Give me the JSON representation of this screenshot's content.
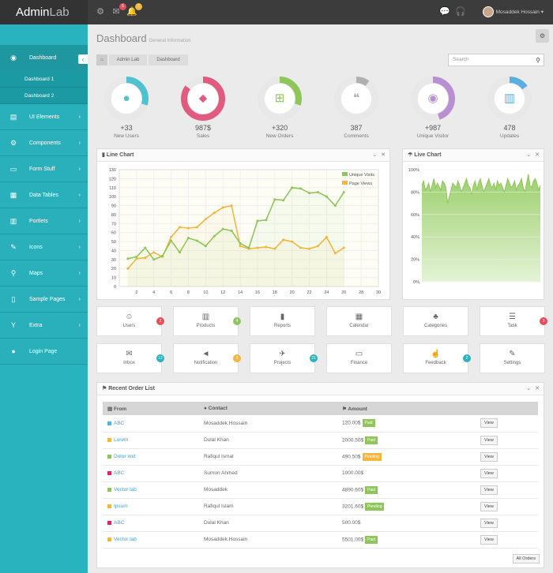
{
  "app": {
    "logo_bold": "Admin",
    "logo_light": "Lab"
  },
  "topbar": {
    "mail_count": "5",
    "notif_count": "7",
    "user_name": "Mosaddek Hossain"
  },
  "sidebar": {
    "items": [
      {
        "label": "Dashboard",
        "icon": "dashboard-icon",
        "arrow": true
      },
      {
        "label": "UI Elements",
        "icon": "book-icon",
        "arrow": true
      },
      {
        "label": "Components",
        "icon": "cogs-icon",
        "arrow": true
      },
      {
        "label": "Form Stuff",
        "icon": "form-icon",
        "arrow": true
      },
      {
        "label": "Data Tables",
        "icon": "table-icon",
        "arrow": true
      },
      {
        "label": "Portlets",
        "icon": "portlet-icon",
        "arrow": true
      },
      {
        "label": "Icons",
        "icon": "pen-icon",
        "arrow": true
      },
      {
        "label": "Maps",
        "icon": "marker-icon",
        "arrow": true
      },
      {
        "label": "Sample Pages",
        "icon": "file-icon",
        "arrow": true
      },
      {
        "label": "Extra",
        "icon": "glass-icon",
        "arrow": true
      },
      {
        "label": "Login Page",
        "icon": "user-icon",
        "arrow": false
      }
    ],
    "sub": [
      "Dashboard 1",
      "Dashboard 2"
    ]
  },
  "page": {
    "title": "Dashboard",
    "subtitle": "General Information",
    "breadcrumb": [
      "Admin Lab",
      "Dashboard"
    ],
    "search_placeholder": "Search"
  },
  "stats": [
    {
      "value": "+33",
      "label": "New Users",
      "color": "#4fc1cf",
      "pct": 0.3,
      "icon": "user-icon"
    },
    {
      "value": "987$",
      "label": "Sales",
      "color": "#e05b7f",
      "pct": 0.85,
      "icon": "tag-icon"
    },
    {
      "value": "+320",
      "label": "New Orders",
      "color": "#8fc65a",
      "pct": 0.3,
      "icon": "cart-icon"
    },
    {
      "value": "387",
      "label": "Comments",
      "color": "#b0b0b0",
      "pct": 0.1,
      "icon": "comments-icon"
    },
    {
      "value": "+987",
      "label": "Unique Visitor",
      "color": "#b88fd0",
      "pct": 0.45,
      "icon": "eye-icon"
    },
    {
      "value": "478",
      "label": "Updates",
      "color": "#5aaee0",
      "pct": 0.15,
      "icon": "chart-icon"
    }
  ],
  "line_panel": {
    "title": "Line Chart"
  },
  "live_panel": {
    "title": "Live Chart"
  },
  "chart_data": [
    {
      "type": "line",
      "title": "",
      "x": [
        1,
        2,
        3,
        4,
        5,
        6,
        7,
        8,
        9,
        10,
        11,
        12,
        13,
        14,
        15,
        16,
        17,
        18,
        19,
        20,
        21,
        22,
        23,
        24,
        25,
        26
      ],
      "xticks": [
        2,
        4,
        6,
        8,
        10,
        12,
        14,
        16,
        18,
        20,
        22,
        24,
        26,
        28,
        30
      ],
      "yticks": [
        0,
        10,
        20,
        30,
        40,
        50,
        60,
        70,
        80,
        90,
        100,
        110,
        120,
        130
      ],
      "ylim": [
        0,
        130
      ],
      "xlim": [
        0,
        30
      ],
      "legend": "top-right",
      "series": [
        {
          "name": "Unique Visits",
          "color": "#8fc65a",
          "values": [
            31,
            33,
            43,
            30,
            34,
            51,
            38,
            54,
            51,
            45,
            56,
            64,
            62,
            48,
            43,
            73,
            74,
            97,
            96,
            110,
            109,
            104,
            105,
            100,
            90,
            105
          ]
        },
        {
          "name": "Page Views",
          "color": "#f6b63d",
          "values": [
            20,
            31,
            32,
            38,
            33,
            55,
            66,
            65,
            66,
            75,
            82,
            88,
            90,
            45,
            42,
            43,
            44,
            42,
            52,
            50,
            43,
            42,
            45,
            55,
            37,
            43
          ]
        }
      ]
    },
    {
      "type": "area",
      "title": "",
      "yticks": [
        "0%",
        "20%",
        "40%",
        "60%",
        "80%",
        "100%"
      ],
      "ylim": [
        0,
        100
      ],
      "values": [
        86,
        90,
        82,
        84,
        88,
        80,
        86,
        92,
        84,
        88,
        85,
        82,
        90,
        88,
        84,
        70,
        76,
        82,
        88,
        86,
        84,
        90,
        86,
        80,
        84,
        88,
        92,
        86,
        84,
        78,
        86,
        90,
        82,
        88,
        92,
        86,
        80,
        84,
        88,
        92,
        86,
        84,
        88,
        82,
        90,
        86,
        88,
        84,
        80,
        86,
        92,
        88,
        84,
        86,
        90,
        82,
        86,
        88,
        92,
        84,
        80,
        88,
        96,
        86,
        84,
        90,
        92,
        88,
        82,
        86
      ]
    }
  ],
  "tiles_row1": [
    {
      "label": "Users",
      "icon": "users-icon",
      "badge": "2",
      "bcolor": "#e74c5a"
    },
    {
      "label": "Products",
      "icon": "barcode-icon",
      "badge": "4",
      "bcolor": "#8fc65a"
    },
    {
      "label": "Reports",
      "icon": "bar-chart-icon",
      "badge": "",
      "bcolor": ""
    },
    {
      "label": "Calendar",
      "icon": "calendar-icon",
      "badge": "",
      "bcolor": ""
    },
    {
      "label": "Categories",
      "icon": "sitemap-icon",
      "badge": "",
      "bcolor": ""
    },
    {
      "label": "Task",
      "icon": "task-icon",
      "badge": "3",
      "bcolor": "#e74c5a"
    }
  ],
  "tiles_row2": [
    {
      "label": "Inbox",
      "icon": "envelope-icon",
      "badge": "12",
      "bcolor": "#29b3be"
    },
    {
      "label": "Notification",
      "icon": "bullhorn-icon",
      "badge": "3",
      "bcolor": "#f6b63d"
    },
    {
      "label": "Projects",
      "icon": "plane-icon",
      "badge": "21",
      "bcolor": "#29b3be"
    },
    {
      "label": "Finance",
      "icon": "money-icon",
      "badge": "",
      "bcolor": ""
    },
    {
      "label": "Feedback",
      "icon": "thumbs-up-icon",
      "badge": "2",
      "bcolor": "#29b3be"
    },
    {
      "label": "Settings",
      "icon": "wrench-icon",
      "badge": "",
      "bcolor": ""
    }
  ],
  "orders": {
    "title": "Recent Order List",
    "headers": [
      "From",
      "Contact",
      "Amount"
    ],
    "all_label": "All Orders",
    "view_label": "View",
    "rows": [
      {
        "from": "ABC",
        "color": "#5aaee0",
        "contact": "Mosaddek Hossain",
        "amount": "120.00$",
        "status": "Paid",
        "scolor": "#8fc65a"
      },
      {
        "from": "Lorem",
        "color": "#f6b63d",
        "contact": "Dulal Khan",
        "amount": "2000.50$",
        "status": "Paid",
        "scolor": "#8fc65a"
      },
      {
        "from": "Dolor imit",
        "color": "#8fc65a",
        "contact": "Rafiqul Ismal",
        "amount": "490.50$",
        "status": "Pending",
        "scolor": "#f6b63d"
      },
      {
        "from": "ABC",
        "color": "#e0245e",
        "contact": "Sumon Ahmed",
        "amount": "1000.00$",
        "status": "",
        "scolor": ""
      },
      {
        "from": "Vector lab",
        "color": "#8fc65a",
        "contact": "Mosaddek",
        "amount": "4890.60$",
        "status": "Paid",
        "scolor": "#8fc65a"
      },
      {
        "from": "Ipsum",
        "color": "#f6b63d",
        "contact": "Rafiqul Islam",
        "amount": "3201.60$",
        "status": "Pending",
        "scolor": "#8fc65a"
      },
      {
        "from": "ABC",
        "color": "#e0245e",
        "contact": "Dulal Khan",
        "amount": "500.00$",
        "status": "",
        "scolor": ""
      },
      {
        "from": "Vector lab",
        "color": "#f6b63d",
        "contact": "Mosaddek Hossain",
        "amount": "5501.00$",
        "status": "Paid",
        "scolor": "#8fc65a"
      }
    ]
  }
}
